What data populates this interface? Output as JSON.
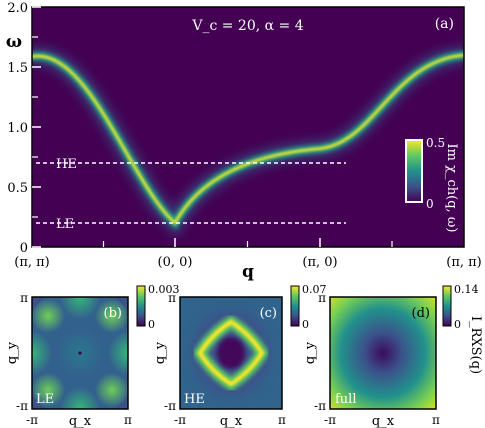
{
  "chart_data": [
    {
      "panel": "(a)",
      "type": "heatmap",
      "annotation": "V_c = 20, α = 4",
      "ylabel": "ω",
      "xlabel": "q",
      "x_ticks": [
        "(π, π)",
        "(0, 0)",
        "(π, 0)",
        "(π, π)"
      ],
      "y_ticks": [
        "0",
        "0.5",
        "1.0",
        "1.5",
        "2.0"
      ],
      "ylim": [
        0,
        2.0
      ],
      "colorbar": {
        "label": "Im χ_ch(q, ω)",
        "ticks": [
          "0",
          "0.5"
        ],
        "range": [
          0,
          0.5
        ]
      },
      "reference_lines": [
        {
          "label": "HE",
          "omega": 0.7
        },
        {
          "label": "LE",
          "omega": 0.2
        }
      ],
      "dispersion": {
        "segments": [
          "(π, π)",
          "(0, 0)",
          "(π, 0)",
          "(π, π)"
        ],
        "omega_at_nodes": [
          1.6,
          0.2,
          0.82,
          1.6
        ]
      }
    },
    {
      "panel": "(b)",
      "type": "heatmap",
      "tag": "LE",
      "xlabel": "q_x",
      "ylabel": "q_y",
      "x_ticks": [
        "-π",
        "π"
      ],
      "y_ticks": [
        "π",
        "-π"
      ],
      "colorbar": {
        "ticks": [
          "0.003",
          "0"
        ],
        "range": [
          0,
          0.003
        ]
      }
    },
    {
      "panel": "(c)",
      "type": "heatmap",
      "tag": "HE",
      "xlabel": "q_x",
      "ylabel": "q_y",
      "x_ticks": [
        "-π",
        "π"
      ],
      "y_ticks": [
        "π",
        "-π"
      ],
      "colorbar": {
        "ticks": [
          "0.07",
          "0"
        ],
        "range": [
          0,
          0.07
        ]
      }
    },
    {
      "panel": "(d)",
      "type": "heatmap",
      "tag": "full",
      "xlabel": "q_x",
      "ylabel": "q_y",
      "x_ticks": [
        "-π",
        "π"
      ],
      "y_ticks": [
        "π",
        "-π"
      ],
      "colorbar": {
        "label": "I_RXS(q)",
        "ticks": [
          "0.14",
          "0"
        ],
        "range": [
          0,
          0.14
        ]
      }
    }
  ],
  "colors": {
    "low": "#440154",
    "mid": "#21918c",
    "high": "#fde725",
    "line": "#ffffff"
  }
}
